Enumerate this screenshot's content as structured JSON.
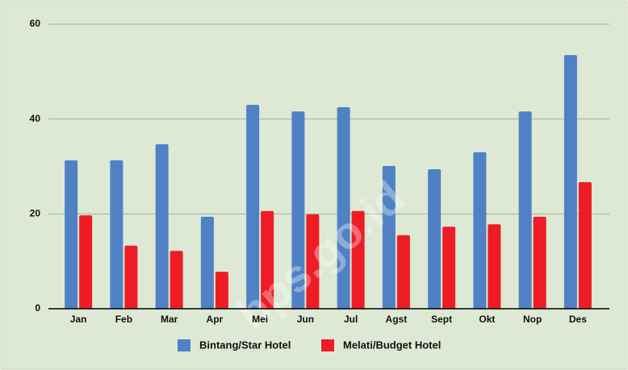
{
  "chart_data": {
    "type": "bar",
    "categories": [
      "Jan",
      "Feb",
      "Mar",
      "Apr",
      "Mei",
      "Jun",
      "Jul",
      "Agst",
      "Sept",
      "Okt",
      "Nop",
      "Des"
    ],
    "series": [
      {
        "name": "Bintang/Star Hotel",
        "color": "#4f81c4",
        "values": [
          31.3,
          31.3,
          34.7,
          19.4,
          43.0,
          41.6,
          42.5,
          30.1,
          29.4,
          33.0,
          41.6,
          53.5
        ]
      },
      {
        "name": "Melati/Budget Hotel",
        "color": "#ee1d25",
        "values": [
          19.7,
          13.3,
          12.2,
          7.8,
          20.6,
          19.9,
          20.6,
          15.5,
          17.3,
          17.8,
          19.4,
          26.7
        ]
      }
    ],
    "ylim": [
      0,
      60
    ],
    "yticks": [
      0,
      20,
      40,
      60
    ],
    "grid": true,
    "legend": "bottom",
    "watermark": "bps.go.id"
  }
}
